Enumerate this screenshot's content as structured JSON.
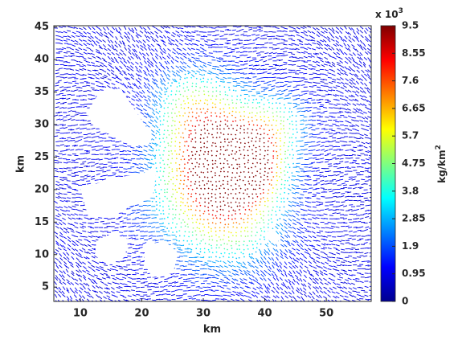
{
  "chart_data": {
    "type": "quiver",
    "x_label": "km",
    "y_label": "km",
    "xlim": [
      5.7,
      57.3
    ],
    "xticks": [
      10,
      20,
      30,
      40,
      50
    ],
    "ylim": [
      2.8,
      45.2
    ],
    "yticks": [
      5,
      10,
      15,
      20,
      25,
      30,
      35,
      40,
      45
    ],
    "colorbar": {
      "colormap": "jet",
      "lim": [
        0,
        9.5
      ],
      "ticks": [
        0,
        0.95,
        1.9,
        2.85,
        3.8,
        4.75,
        5.7,
        6.65,
        7.6,
        8.55,
        9.5
      ],
      "multiplier": {
        "base": "x 10",
        "exponent": "3"
      },
      "label": {
        "base": "kg/km",
        "exponent": "2"
      }
    }
  }
}
